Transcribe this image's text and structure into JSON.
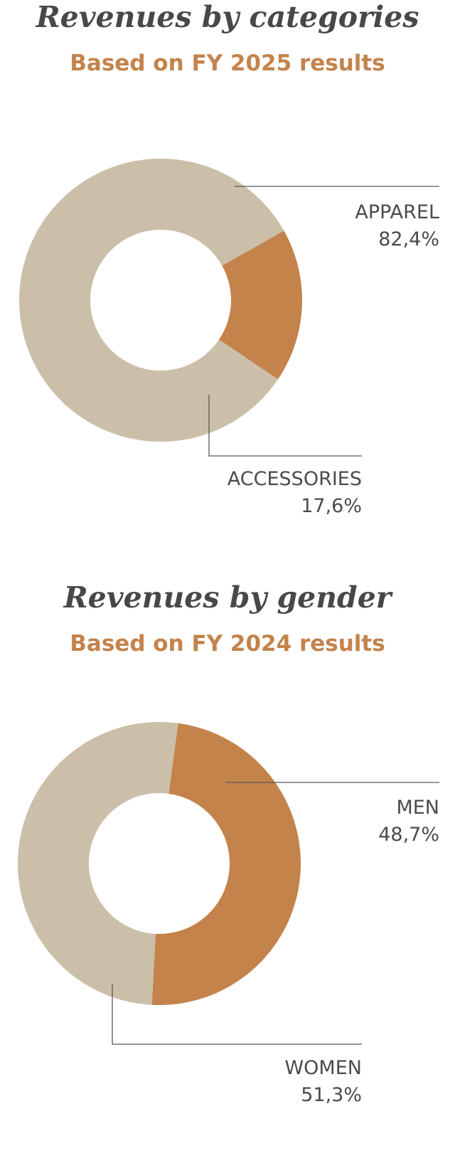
{
  "chart_data": [
    {
      "type": "pie",
      "title": "Revenues by categories",
      "subtitle": "Based on FY 2025 results",
      "slices": [
        {
          "label": "APPAREL",
          "value": 82.4,
          "value_label": "82,4%",
          "color": "#cbbfa9"
        },
        {
          "label": "ACCESSORIES",
          "value": 17.6,
          "value_label": "17,6%",
          "color": "#c4834b"
        }
      ]
    },
    {
      "type": "pie",
      "title": "Revenues by gender",
      "subtitle": "Based on FY 2024 results",
      "slices": [
        {
          "label": "MEN",
          "value": 48.7,
          "value_label": "48,7%",
          "color": "#c4834b"
        },
        {
          "label": "WOMEN",
          "value": 51.3,
          "value_label": "51,3%",
          "color": "#cbbfa9"
        }
      ]
    }
  ]
}
